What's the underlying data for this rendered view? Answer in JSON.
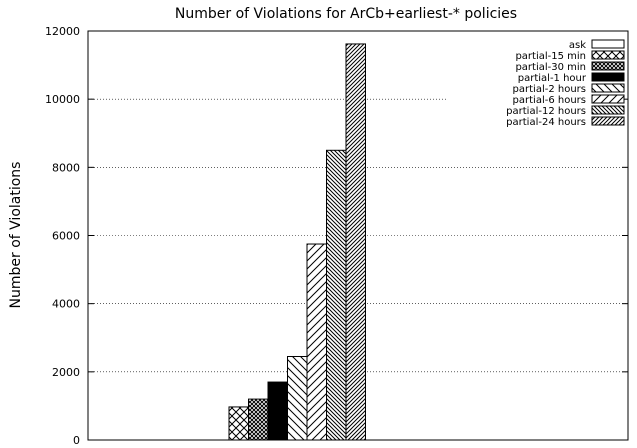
{
  "chart_data": {
    "type": "bar",
    "title": "Number of Violations for ArCb+earliest-* policies",
    "xlabel": "",
    "ylabel": "Number of Violations",
    "ylim": [
      0,
      12000
    ],
    "yticks": [
      "0",
      "2000",
      "4000",
      "6000",
      "8000",
      "10000",
      "12000"
    ],
    "grid": true,
    "legend_position": "top-right",
    "series": [
      {
        "name": "ask",
        "value": 0,
        "pattern": "empty"
      },
      {
        "name": "partial-15 min",
        "value": 970,
        "pattern": "crosshatch"
      },
      {
        "name": "partial-30 min",
        "value": 1200,
        "pattern": "dense-crosshatch"
      },
      {
        "name": "partial-1 hour",
        "value": 1700,
        "pattern": "solid"
      },
      {
        "name": "partial-2 hours",
        "value": 2450,
        "pattern": "backslash-wide"
      },
      {
        "name": "partial-6 hours",
        "value": 5750,
        "pattern": "slash-wide"
      },
      {
        "name": "partial-12 hours",
        "value": 8500,
        "pattern": "backslash-dense"
      },
      {
        "name": "partial-24 hours",
        "value": 11620,
        "pattern": "slash-dense"
      }
    ]
  }
}
